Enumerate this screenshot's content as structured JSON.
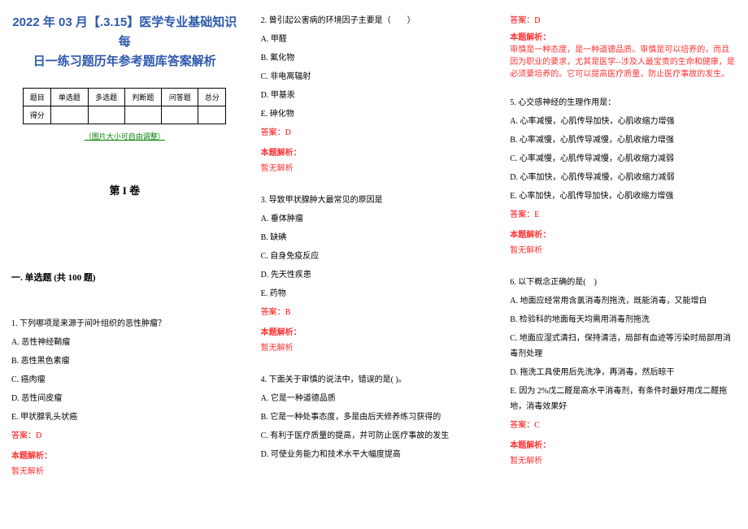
{
  "colors": {
    "title": "#2e5aac",
    "green": "#008000",
    "red": "#ff0000",
    "ana_red": "#ff3333",
    "text": "#000000",
    "bg": "#ffffff",
    "border": "#000000"
  },
  "typography": {
    "title_fontsize": 15,
    "body_fontsize": 10,
    "vol_fontsize": 13,
    "sec_fontsize": 11,
    "note_fontsize": 9
  },
  "header": {
    "title_line1": "2022 年 03 月【.3.15】医学专业基础知识每",
    "title_line2": "日一练习题历年参考题库答案解析"
  },
  "score_table": {
    "headers": [
      "题目",
      "单选题",
      "多选题",
      "判断题",
      "问答题",
      "总分"
    ],
    "row2_label": "得分"
  },
  "adjust_note": "（图片大小可自由调整）",
  "volume_title": "第 I 卷",
  "section_title": "一. 单选题 (共 100 题)",
  "q1": {
    "stem": "1. 下列哪项是来源于间叶组织的恶性肿瘤？",
    "opts": [
      "A. 恶性神经鞘瘤",
      "B. 恶性黑色素瘤",
      "C. 癌肉瘤",
      "D. 恶性间皮瘤",
      "E. 甲状腺乳头状癌"
    ],
    "answer": "答案：D",
    "ana_label": "本题解析：",
    "ana_text": "暂无解析"
  },
  "q2": {
    "stem": "2. 曾引起公害病的环境因子主要是（　　）",
    "opts": [
      "A. 甲醛",
      "B. 氟化物",
      "C. 非电离辐射",
      "D. 甲基汞",
      "E. 砷化物"
    ],
    "answer": "答案：D",
    "ana_label": "本题解析：",
    "ana_text": "暂无解析"
  },
  "q3": {
    "stem": "3. 导致甲状腺肿大最常见的原因是",
    "opts": [
      "A. 垂体肿瘤",
      "B. 缺碘",
      "C. 自身免疫反应",
      "D. 先天性疾患",
      "E. 药物"
    ],
    "answer": "答案：B",
    "ana_label": "本题解析：",
    "ana_text": "暂无解析"
  },
  "q4": {
    "stem": "4. 下面关于审慎的说法中，错误的是( )。",
    "opts": [
      "A. 它是一种道德品质",
      "B. 它是一种处事态度，多是由后天修养练习获得的",
      "C. 有利于医疗质量的提高，并可防止医疗事故的发生",
      "D. 可使业务能力和技术水平大幅度提高"
    ],
    "answer": "答案：D",
    "ana_label": "本题解析：",
    "ana_text": "审慎是一种态度，是一种道德品质。审慎是可以培养的，而且因为职业的要求，尤其是医学--涉及人最宝贵的生命和健康，是必须要培养的。它可以提高医疗质量，防止医疗事故的发生。"
  },
  "q5": {
    "stem": "5. 心交感神经的生理作用是：",
    "opts": [
      "A. 心率减慢，心肌传导加快，心肌收缩力增强",
      "B. 心率减慢，心肌传导减慢，心肌收缩力增强",
      "C. 心率减慢，心肌传导减慢，心肌收缩力减弱",
      "D. 心率加快，心肌传导减慢，心肌收缩力减弱",
      "E. 心率加快，心肌传导加快，心肌收缩力增强"
    ],
    "answer": "答案：E",
    "ana_label": "本题解析：",
    "ana_text": "暂无解析"
  },
  "q6": {
    "stem": "6. 以下概念正确的是(　)",
    "opts": [
      "A. 地面应经常用含氯消毒剂拖洗，既能消毒，又能增白",
      "B. 检验科的地面每天均需用消毒剂拖洗",
      "C. 地面应湿式清扫，保持清洁，局部有血迹等污染时局部用消毒剂处理",
      "D. 拖洗工具使用后先洗净，再消毒，然后晾干",
      "E. 因为 2%戊二醛是高水平消毒剂，有条件时最好用戊二醛拖地，消毒效果好"
    ],
    "answer": "答案：C",
    "ana_label": "本题解析：",
    "ana_text": "暂无解析"
  }
}
